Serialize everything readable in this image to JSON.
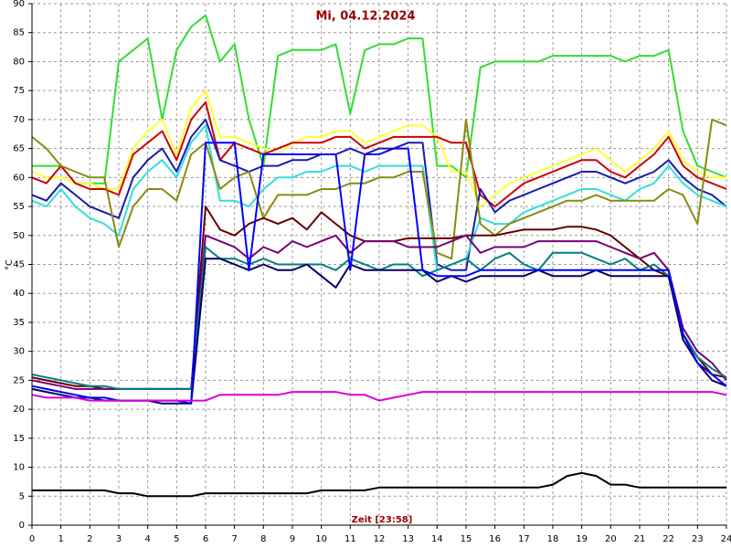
{
  "chart_data": {
    "type": "line",
    "title": "Mi, 04.12.2024",
    "ylabel": "°C",
    "xlabel": "Zeit [23:58]",
    "grid": true,
    "xlim": [
      0,
      24
    ],
    "ylim": [
      0,
      90
    ],
    "xticks": [
      0,
      1,
      2,
      3,
      4,
      5,
      6,
      7,
      8,
      9,
      10,
      11,
      12,
      13,
      14,
      15,
      16,
      17,
      18,
      19,
      20,
      21,
      22,
      23,
      24
    ],
    "yticks": [
      0,
      5,
      10,
      15,
      20,
      25,
      30,
      35,
      40,
      45,
      50,
      55,
      60,
      65,
      70,
      75,
      80,
      85,
      90
    ],
    "x": [
      0,
      0.5,
      1,
      1.5,
      2,
      2.5,
      3,
      3.5,
      4,
      4.5,
      5,
      5.5,
      6,
      6.5,
      7,
      7.5,
      8,
      8.5,
      9,
      9.5,
      10,
      10.5,
      11,
      11.5,
      12,
      12.5,
      13,
      13.5,
      14,
      14.5,
      15,
      15.5,
      16,
      16.5,
      17,
      17.5,
      18,
      18.5,
      19,
      19.5,
      20,
      20.5,
      21,
      21.5,
      22,
      22.5,
      23,
      23.5,
      24
    ],
    "series": [
      {
        "color": "#33dd33",
        "values": [
          62,
          62,
          62,
          59,
          59,
          59,
          80,
          82,
          84,
          70,
          82,
          86,
          88,
          80,
          83,
          70,
          62,
          81,
          82,
          82,
          82,
          83,
          71,
          82,
          83,
          83,
          84,
          84,
          62,
          62,
          60,
          79,
          80,
          80,
          80,
          80,
          81,
          81,
          81,
          81,
          81,
          80,
          81,
          81,
          82,
          68,
          62,
          61,
          60
        ]
      },
      {
        "color": "#ffff33",
        "values": [
          61,
          60,
          60,
          59,
          59,
          58,
          58,
          65,
          68,
          70,
          64,
          72,
          75,
          67,
          67,
          66,
          65,
          64,
          66,
          67,
          67,
          68,
          68,
          66,
          67,
          68,
          69,
          69,
          67,
          61,
          61,
          55,
          57,
          59,
          60,
          61,
          62,
          63,
          64,
          65,
          63,
          61,
          63,
          65,
          68,
          63,
          61,
          60,
          60
        ]
      },
      {
        "color": "#cc0000",
        "values": [
          60,
          59,
          62,
          59,
          58,
          58,
          57,
          64,
          66,
          68,
          63,
          70,
          73,
          63,
          66,
          65,
          64,
          65,
          66,
          66,
          66,
          67,
          67,
          65,
          66,
          67,
          67,
          67,
          67,
          66,
          66,
          57,
          55,
          57,
          59,
          60,
          61,
          62,
          63,
          63,
          61,
          60,
          62,
          64,
          67,
          62,
          60,
          59,
          58
        ]
      },
      {
        "color": "#1a1ab0",
        "values": [
          57,
          56,
          59,
          57,
          55,
          54,
          53,
          60,
          63,
          65,
          61,
          67,
          70,
          63,
          62,
          61,
          62,
          62,
          63,
          63,
          64,
          64,
          65,
          64,
          65,
          65,
          66,
          66,
          45,
          44,
          44,
          58,
          54,
          56,
          57,
          58,
          59,
          60,
          61,
          61,
          60,
          59,
          60,
          61,
          63,
          60,
          58,
          57,
          55
        ]
      },
      {
        "color": "#33dddd",
        "values": [
          56,
          55,
          58,
          55,
          53,
          52,
          50,
          58,
          61,
          63,
          60,
          66,
          69,
          56,
          56,
          55,
          58,
          60,
          60,
          61,
          61,
          62,
          62,
          61,
          62,
          62,
          62,
          62,
          44,
          45,
          46,
          53,
          52,
          52,
          54,
          55,
          56,
          57,
          58,
          58,
          57,
          56,
          58,
          59,
          62,
          59,
          57,
          56,
          55
        ]
      },
      {
        "color": "#8a8a10",
        "values": [
          67,
          65,
          62,
          61,
          60,
          60,
          48,
          55,
          58,
          58,
          56,
          64,
          66,
          58,
          60,
          61,
          53,
          57,
          57,
          57,
          58,
          58,
          59,
          59,
          60,
          60,
          61,
          61,
          47,
          46,
          70,
          52,
          50,
          52,
          53,
          54,
          55,
          56,
          56,
          57,
          56,
          56,
          56,
          56,
          58,
          57,
          52,
          70,
          69
        ]
      },
      {
        "color": "#660000",
        "values": [
          25.5,
          25,
          24.5,
          24,
          24,
          23.5,
          23.5,
          23.5,
          23.5,
          23.5,
          23.5,
          23.5,
          55,
          51,
          50,
          52,
          53,
          52,
          53,
          51,
          54,
          52,
          50,
          49,
          49,
          49,
          49.5,
          49.5,
          49.5,
          49.5,
          50,
          50,
          50,
          50.5,
          51,
          51,
          51,
          51.5,
          51.5,
          51,
          50,
          48,
          46,
          44,
          43,
          33,
          29,
          26,
          25.5
        ]
      },
      {
        "color": "#770077",
        "values": [
          25,
          24.5,
          24,
          23.5,
          23.5,
          23.5,
          23.5,
          23.5,
          23.5,
          23.5,
          23.5,
          23.5,
          50,
          49,
          48,
          46,
          48,
          47,
          49,
          48,
          49,
          50,
          47,
          49,
          49,
          49,
          48,
          48,
          48,
          49,
          50,
          47,
          48,
          48,
          48,
          49,
          49,
          49,
          49,
          49,
          48,
          47,
          46,
          47,
          44,
          34,
          30,
          28,
          25
        ]
      },
      {
        "color": "#008080",
        "values": [
          26,
          25.5,
          25,
          24.5,
          24,
          24,
          23.5,
          23.5,
          23.5,
          23.5,
          23.5,
          23.5,
          48,
          46,
          46,
          45,
          46,
          45,
          45,
          45,
          45,
          44,
          46,
          45,
          44,
          45,
          45,
          43,
          44,
          45,
          46,
          44,
          46,
          47,
          45,
          44,
          47,
          47,
          47,
          46,
          45,
          46,
          44,
          45,
          43,
          33,
          29,
          27,
          25.5
        ]
      },
      {
        "color": "#000066",
        "values": [
          23.5,
          23,
          22.5,
          22,
          22,
          21.5,
          21.5,
          21.5,
          21.5,
          21,
          21,
          21,
          46,
          46,
          45,
          44,
          45,
          44,
          44,
          45,
          43,
          41,
          45,
          44,
          44,
          44,
          44,
          44,
          42,
          43,
          42,
          43,
          43,
          43,
          43,
          44,
          43,
          43,
          43,
          44,
          43,
          43,
          43,
          43,
          43,
          32,
          28,
          25,
          24
        ]
      },
      {
        "color": "#0000ff",
        "values": [
          24,
          23.5,
          23,
          22.5,
          22,
          22,
          21.5,
          21.5,
          21.5,
          21.5,
          21.5,
          21,
          66,
          66,
          66,
          44,
          64,
          64,
          64,
          64,
          64,
          64,
          44,
          64,
          64,
          65,
          65,
          44,
          43,
          43,
          43,
          44,
          44,
          44,
          44,
          44,
          44,
          44,
          44,
          44,
          44,
          44,
          44,
          44,
          44,
          33,
          28,
          26,
          24
        ]
      },
      {
        "color": "#dd00dd",
        "values": [
          22.5,
          22,
          22,
          22,
          21.5,
          21.5,
          21.5,
          21.5,
          21.5,
          21.5,
          21.5,
          21.5,
          21.5,
          22.5,
          22.5,
          22.5,
          22.5,
          22.5,
          23,
          23,
          23,
          23,
          22.5,
          22.5,
          21.5,
          22,
          22.5,
          23,
          23,
          23,
          23,
          23,
          23,
          23,
          23,
          23,
          23,
          23,
          23,
          23,
          23,
          23,
          23,
          23,
          23,
          23,
          23,
          23,
          22.5
        ]
      },
      {
        "color": "#000000",
        "values": [
          6,
          6,
          6,
          6,
          6,
          6,
          5.5,
          5.5,
          5,
          5,
          5,
          5,
          5.5,
          5.5,
          5.5,
          5.5,
          5.5,
          5.5,
          5.5,
          5.5,
          6,
          6,
          6,
          6,
          6.5,
          6.5,
          6.5,
          6.5,
          6.5,
          6.5,
          6.5,
          6.5,
          6.5,
          6.5,
          6.5,
          6.5,
          7,
          8.5,
          9,
          8.5,
          7,
          7,
          6.5,
          6.5,
          6.5,
          6.5,
          6.5,
          6.5,
          6.5
        ]
      }
    ]
  }
}
